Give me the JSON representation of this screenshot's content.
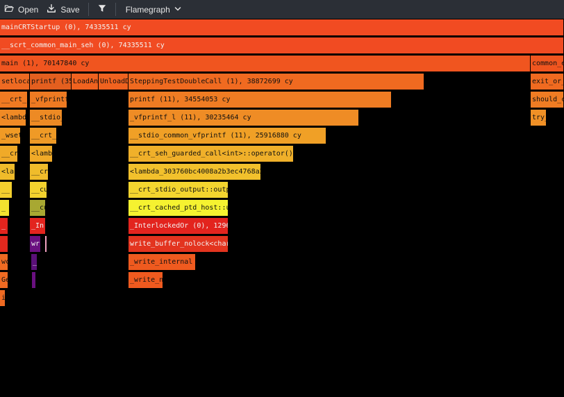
{
  "toolbar": {
    "open_label": "Open",
    "save_label": "Save",
    "view_label": "Flamegraph"
  },
  "frames": [
    {
      "label": "mainCRTStartup (0), 74335511 cy",
      "depth": 0,
      "start": 0,
      "end": 812,
      "color": "#f14b22",
      "light": true
    },
    {
      "label": "__scrt_common_main_seh (0), 74335511 cy",
      "depth": 1,
      "start": 0,
      "end": 812,
      "color": "#f14b22",
      "light": true
    },
    {
      "label": "main (1), 70147840 cy",
      "depth": 2,
      "start": 0,
      "end": 764,
      "color": "#f0551f"
    },
    {
      "label": "common_e",
      "depth": 2,
      "start": 764,
      "end": 812,
      "color": "#f0551f"
    },
    {
      "label": "setloca",
      "depth": 3,
      "start": 0,
      "end": 43,
      "color": "#ee6a22"
    },
    {
      "label": "printf (35",
      "depth": 3,
      "start": 43,
      "end": 103,
      "color": "#e35f1f"
    },
    {
      "label": "LoadAn",
      "depth": 3,
      "start": 103,
      "end": 142,
      "color": "#f0621f"
    },
    {
      "label": "UnloadD",
      "depth": 3,
      "start": 142,
      "end": 185,
      "color": "#f0621f"
    },
    {
      "label": "SteppingTestDoubleCall (1), 38872699 cy",
      "depth": 3,
      "start": 185,
      "end": 611,
      "color": "#f06a20"
    },
    {
      "label": "exit_or_",
      "depth": 3,
      "start": 764,
      "end": 812,
      "color": "#f06a20"
    },
    {
      "label": "__crt_",
      "depth": 4,
      "start": 0,
      "end": 40,
      "color": "#f07a22"
    },
    {
      "label": "_vfprintf",
      "depth": 4,
      "start": 43,
      "end": 97,
      "color": "#ee7a22"
    },
    {
      "label": "printf (11), 34554053 cy",
      "depth": 4,
      "start": 185,
      "end": 564,
      "color": "#ef7c23"
    },
    {
      "label": "should_c",
      "depth": 4,
      "start": 764,
      "end": 812,
      "color": "#ef7c23"
    },
    {
      "label": "<lambd",
      "depth": 5,
      "start": 0,
      "end": 38,
      "color": "#f08a25"
    },
    {
      "label": "__stdio_",
      "depth": 5,
      "start": 43,
      "end": 90,
      "color": "#ed8a24"
    },
    {
      "label": "_vfprintf_l (11), 30235464 cy",
      "depth": 5,
      "start": 185,
      "end": 517,
      "color": "#ef8c25"
    },
    {
      "label": "try_",
      "depth": 5,
      "start": 764,
      "end": 787,
      "color": "#f09026"
    },
    {
      "label": "_wset",
      "depth": 6,
      "start": 0,
      "end": 30,
      "color": "#f09a25"
    },
    {
      "label": "__crt_",
      "depth": 6,
      "start": 43,
      "end": 82,
      "color": "#ef9a26"
    },
    {
      "label": "__stdio_common_vfprintf (11), 25916880 cy",
      "depth": 6,
      "start": 185,
      "end": 470,
      "color": "#f0a026"
    },
    {
      "label": "__cr",
      "depth": 7,
      "start": 0,
      "end": 26,
      "color": "#f0aa28"
    },
    {
      "label": "<lamb",
      "depth": 7,
      "start": 43,
      "end": 76,
      "color": "#f0aa28"
    },
    {
      "label": "__crt_seh_guarded_call<int>::operator()",
      "depth": 7,
      "start": 185,
      "end": 423,
      "color": "#f0b02a"
    },
    {
      "label": "<la",
      "depth": 8,
      "start": 0,
      "end": 22,
      "color": "#f0bb2a"
    },
    {
      "label": "__cr",
      "depth": 8,
      "start": 43,
      "end": 70,
      "color": "#f0bc2b"
    },
    {
      "label": "<lambda_303760bc4008a2b3ec4768a2",
      "depth": 8,
      "start": 185,
      "end": 376,
      "color": "#f2c12c"
    },
    {
      "label": "__",
      "depth": 9,
      "start": 0,
      "end": 18,
      "color": "#f3cf2e"
    },
    {
      "label": "__cu",
      "depth": 9,
      "start": 43,
      "end": 68,
      "color": "#f3d22e"
    },
    {
      "label": "__crt_stdio_output::outp",
      "depth": 9,
      "start": 185,
      "end": 329,
      "color": "#f3d52f"
    },
    {
      "label": "_",
      "depth": 10,
      "start": 0,
      "end": 14,
      "color": "#f2e22f"
    },
    {
      "label": "__cu",
      "depth": 10,
      "start": 43,
      "end": 66,
      "color": "#a8a832"
    },
    {
      "label": "__crt_cached_ptd_host::u",
      "depth": 10,
      "start": 185,
      "end": 329,
      "color": "#f5f230"
    },
    {
      "label": "_",
      "depth": 11,
      "start": 0,
      "end": 12,
      "color": "#e3241e",
      "light": true
    },
    {
      "label": "_In",
      "depth": 11,
      "start": 43,
      "end": 66,
      "color": "#e3241e",
      "light": true
    },
    {
      "label": "_InterlockedOr (0), 1296",
      "depth": 11,
      "start": 185,
      "end": 329,
      "color": "#e3241e",
      "light": true
    },
    {
      "label": "",
      "depth": 12,
      "start": 0,
      "end": 12,
      "color": "#e3281e"
    },
    {
      "label": "wr",
      "depth": 12,
      "start": 43,
      "end": 59,
      "color": "#6a1080",
      "light": true
    },
    {
      "label": "",
      "depth": 12,
      "start": 65,
      "end": 68,
      "color": "#f0a0c0"
    },
    {
      "label": "write_buffer_nolock<char",
      "depth": 12,
      "start": 185,
      "end": 329,
      "color": "#e3341f",
      "light": true
    },
    {
      "label": "wc",
      "depth": 13,
      "start": 0,
      "end": 12,
      "color": "#ef6a22"
    },
    {
      "label": "_",
      "depth": 13,
      "start": 45,
      "end": 54,
      "color": "#5a1078",
      "light": true
    },
    {
      "label": "_write_internal",
      "depth": 13,
      "start": 185,
      "end": 282,
      "color": "#ef5a1f"
    },
    {
      "label": "Ge",
      "depth": 14,
      "start": 0,
      "end": 12,
      "color": "#ef6a22"
    },
    {
      "label": "",
      "depth": 14,
      "start": 46,
      "end": 52,
      "color": "#6a1080"
    },
    {
      "label": "_write_n",
      "depth": 14,
      "start": 185,
      "end": 235,
      "color": "#ef5a1f"
    },
    {
      "label": "i",
      "depth": 15,
      "start": 0,
      "end": 8,
      "color": "#ef6a22"
    }
  ]
}
